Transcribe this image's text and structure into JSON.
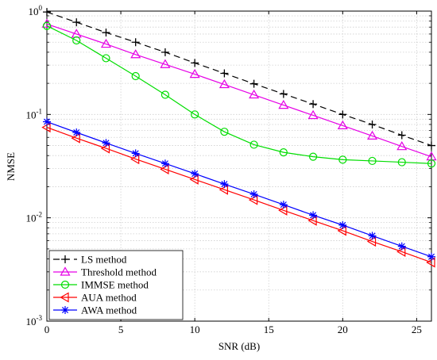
{
  "chart_data": {
    "type": "line",
    "xlabel": "SNR (dB)",
    "ylabel": "NMSE",
    "x_scale": "linear",
    "y_scale": "log",
    "xlim": [
      0,
      26
    ],
    "ylim": [
      0.001,
      1
    ],
    "grid": true,
    "legend_position": "bottom-left",
    "x_ticks": [
      "0",
      "5",
      "10",
      "15",
      "20",
      "25"
    ],
    "y_ticks": [
      {
        "base": "10",
        "exp": "0"
      },
      {
        "base": "10",
        "exp": "-1"
      },
      {
        "base": "10",
        "exp": "-2"
      },
      {
        "base": "10",
        "exp": "-3"
      }
    ],
    "x": [
      0,
      2,
      4,
      6,
      8,
      10,
      12,
      14,
      16,
      18,
      20,
      22,
      24,
      26
    ],
    "series": [
      {
        "name": "LS method",
        "color": "#000000",
        "dash": true,
        "marker": "plus",
        "values": [
          0.98,
          0.78,
          0.62,
          0.5,
          0.4,
          0.315,
          0.25,
          0.198,
          0.158,
          0.126,
          0.1,
          0.08,
          0.063,
          0.05
        ]
      },
      {
        "name": "Threshold method",
        "color": "#e600e6",
        "dash": false,
        "marker": "triangle-up",
        "values": [
          0.75,
          0.6,
          0.48,
          0.38,
          0.305,
          0.245,
          0.195,
          0.155,
          0.123,
          0.098,
          0.078,
          0.062,
          0.049,
          0.039
        ]
      },
      {
        "name": "IMMSE method",
        "color": "#00dd00",
        "dash": false,
        "marker": "circle",
        "values": [
          0.72,
          0.52,
          0.35,
          0.235,
          0.155,
          0.1,
          0.068,
          0.051,
          0.043,
          0.039,
          0.0365,
          0.0355,
          0.0345,
          0.0335
        ]
      },
      {
        "name": "AUA method",
        "color": "#ff0000",
        "dash": false,
        "marker": "triangle-left",
        "values": [
          0.075,
          0.059,
          0.047,
          0.037,
          0.0295,
          0.0235,
          0.0187,
          0.0149,
          0.0118,
          0.0094,
          0.0075,
          0.0059,
          0.0047,
          0.0037
        ]
      },
      {
        "name": "AWA method",
        "color": "#0000ff",
        "dash": false,
        "marker": "asterisk",
        "values": [
          0.085,
          0.067,
          0.053,
          0.042,
          0.0335,
          0.0267,
          0.0212,
          0.0169,
          0.0134,
          0.0106,
          0.0085,
          0.0067,
          0.0053,
          0.0042
        ]
      }
    ]
  }
}
